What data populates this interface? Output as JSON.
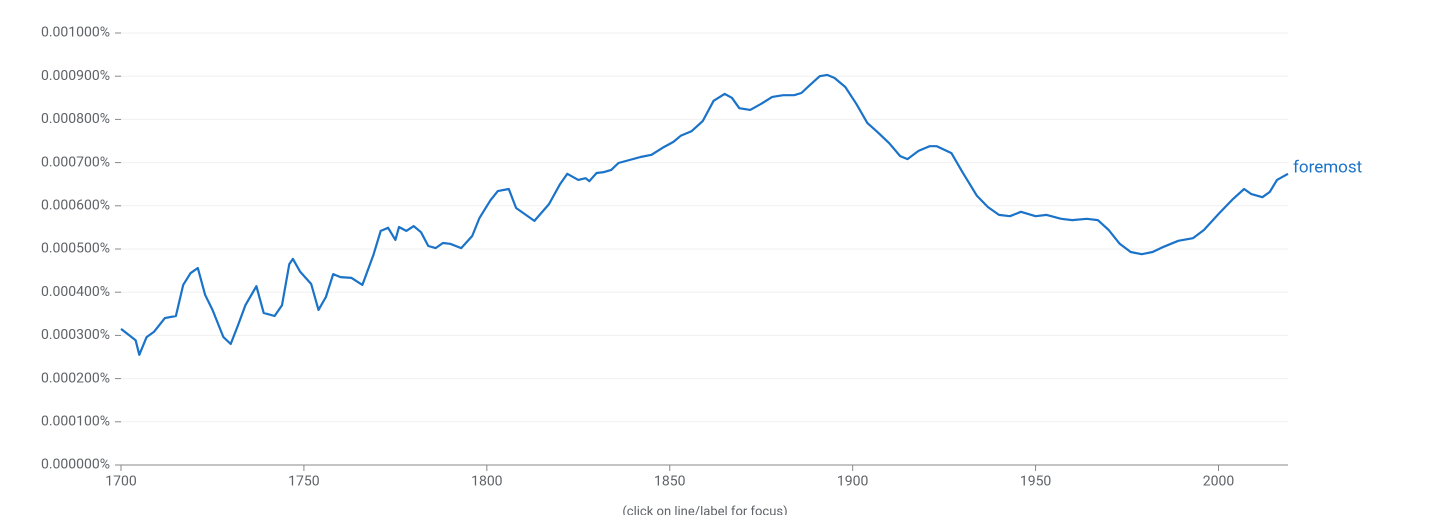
{
  "chart_data": {
    "type": "line",
    "x": [
      1700,
      1704,
      1705,
      1707,
      1709,
      1712,
      1715,
      1717,
      1719,
      1721,
      1723,
      1725,
      1728,
      1730,
      1732,
      1734,
      1737,
      1739,
      1742,
      1744,
      1746,
      1747,
      1749,
      1752,
      1754,
      1756,
      1758,
      1760,
      1763,
      1766,
      1769,
      1771,
      1773,
      1775,
      1776,
      1778,
      1780,
      1782,
      1784,
      1786,
      1788,
      1790,
      1793,
      1796,
      1798,
      1801,
      1803,
      1806,
      1808,
      1810,
      1813,
      1817,
      1820,
      1822,
      1825,
      1827,
      1828,
      1830,
      1832,
      1834,
      1836,
      1839,
      1842,
      1845,
      1848,
      1851,
      1853,
      1856,
      1859,
      1862,
      1865,
      1867,
      1869,
      1872,
      1875,
      1878,
      1881,
      1884,
      1886,
      1888,
      1891,
      1893,
      1895,
      1898,
      1901,
      1904,
      1907,
      1910,
      1913,
      1915,
      1918,
      1921,
      1923,
      1927,
      1930,
      1934,
      1937,
      1940,
      1943,
      1946,
      1950,
      1953,
      1957,
      1960,
      1964,
      1967,
      1970,
      1973,
      1976,
      1979,
      1982,
      1985,
      1989,
      1993,
      1996,
      2000,
      2004,
      2007,
      2009,
      2012,
      2014,
      2016,
      2019
    ],
    "series": [
      {
        "name": "foremost",
        "color": "#1a73c8",
        "values": [
          0.000315,
          0.000289,
          0.000255,
          0.000296,
          0.000308,
          0.00034,
          0.000345,
          0.000417,
          0.000444,
          0.000456,
          0.000394,
          0.000359,
          0.000296,
          0.00028,
          0.000324,
          0.00037,
          0.000414,
          0.000352,
          0.000345,
          0.00037,
          0.000465,
          0.000477,
          0.000447,
          0.000419,
          0.000359,
          0.000389,
          0.000442,
          0.000435,
          0.000433,
          0.000417,
          0.000486,
          0.000542,
          0.000549,
          0.000521,
          0.000551,
          0.000542,
          0.000553,
          0.000539,
          0.000507,
          0.000502,
          0.000514,
          0.000512,
          0.000502,
          0.00053,
          0.000572,
          0.000613,
          0.000634,
          0.000639,
          0.000595,
          0.000583,
          0.000565,
          0.000604,
          0.00065,
          0.000674,
          0.00066,
          0.000664,
          0.000657,
          0.000676,
          0.000678,
          0.000683,
          0.000699,
          0.000706,
          0.000713,
          0.000718,
          0.000734,
          0.000748,
          0.000762,
          0.000773,
          0.000796,
          0.000843,
          0.000859,
          0.00085,
          0.000826,
          0.000822,
          0.000836,
          0.000852,
          0.000856,
          0.000856,
          0.000861,
          0.000877,
          0.0009,
          0.000903,
          0.000896,
          0.000875,
          0.000836,
          0.000792,
          0.000769,
          0.000745,
          0.000715,
          0.000708,
          0.000727,
          0.000738,
          0.000738,
          0.000722,
          0.000678,
          0.000623,
          0.000597,
          0.000579,
          0.000576,
          0.000586,
          0.000576,
          0.000579,
          0.00057,
          0.000567,
          0.00057,
          0.000567,
          0.000544,
          0.000512,
          0.000493,
          0.000488,
          0.000493,
          0.000505,
          0.000519,
          0.000525,
          0.000544,
          0.000581,
          0.000616,
          0.000639,
          0.000627,
          0.00062,
          0.000632,
          0.00066,
          0.000674
        ]
      }
    ],
    "xlim": [
      1700,
      2019
    ],
    "xticks": [
      1700,
      1750,
      1800,
      1850,
      1900,
      1950,
      2000
    ],
    "ylim": [
      0,
      0.001
    ],
    "yticks": [
      {
        "value": 0,
        "label": "0.000000%"
      },
      {
        "value": 0.0001,
        "label": "0.000100%"
      },
      {
        "value": 0.0002,
        "label": "0.000200%"
      },
      {
        "value": 0.0003,
        "label": "0.000300%"
      },
      {
        "value": 0.0004,
        "label": "0.000400%"
      },
      {
        "value": 0.0005,
        "label": "0.000500%"
      },
      {
        "value": 0.0006,
        "label": "0.000600%"
      },
      {
        "value": 0.0007,
        "label": "0.000700%"
      },
      {
        "value": 0.0008,
        "label": "0.000800%"
      },
      {
        "value": 0.0009,
        "label": "0.000900%"
      },
      {
        "value": 0.001,
        "label": "0.001000%"
      }
    ],
    "grid": true,
    "note": "(click on line/label for focus)"
  }
}
